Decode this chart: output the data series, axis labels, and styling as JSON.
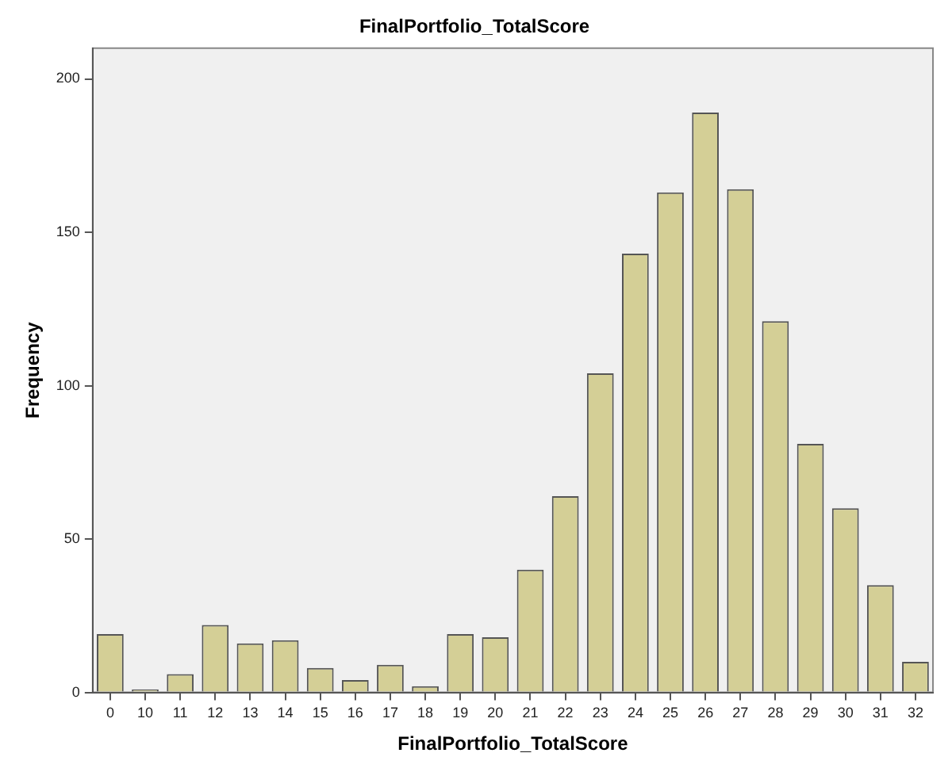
{
  "chart_data": {
    "type": "bar",
    "title": "FinalPortfolio_TotalScore",
    "xlabel": "FinalPortfolio_TotalScore",
    "ylabel": "Frequency",
    "categories": [
      "0",
      "10",
      "11",
      "12",
      "13",
      "14",
      "15",
      "16",
      "17",
      "18",
      "19",
      "20",
      "21",
      "22",
      "23",
      "24",
      "25",
      "26",
      "27",
      "28",
      "29",
      "30",
      "31",
      "32"
    ],
    "values": [
      19,
      1,
      6,
      22,
      16,
      17,
      8,
      4,
      9,
      2,
      19,
      18,
      40,
      64,
      104,
      143,
      163,
      189,
      164,
      121,
      81,
      60,
      35,
      10
    ],
    "color": "#d4cf96",
    "ylim": [
      0,
      210
    ],
    "yticks": [
      0,
      50,
      100,
      150,
      200
    ],
    "grid": false,
    "legend": false
  }
}
